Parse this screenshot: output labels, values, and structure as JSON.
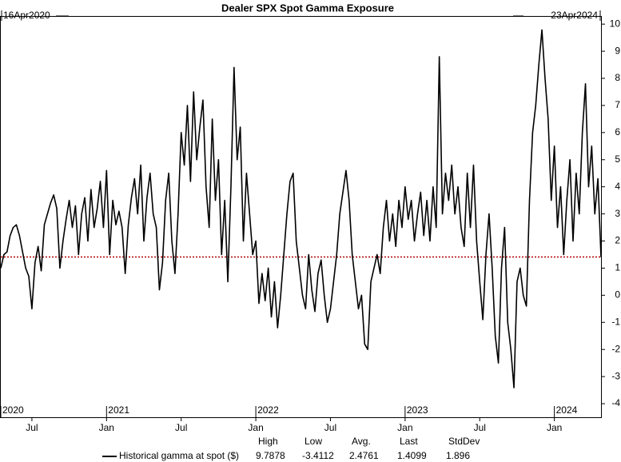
{
  "chart_data": {
    "type": "line",
    "title": "Dealer SPX Spot Gamma Exposure",
    "start_label": "16Apr2020",
    "end_label": "23Apr2024",
    "xlim": [
      3.5,
      51.75
    ],
    "xticks": [
      {
        "value": 6,
        "label": "Jul"
      },
      {
        "value": 12,
        "label": "Jan"
      },
      {
        "value": 18,
        "label": "Jul"
      },
      {
        "value": 24,
        "label": "Jan"
      },
      {
        "value": 30,
        "label": "Jul"
      },
      {
        "value": 36,
        "label": "Jan"
      },
      {
        "value": 42,
        "label": "Jul"
      },
      {
        "value": 48,
        "label": "Jan"
      }
    ],
    "year_labels": [
      {
        "value": 3.5,
        "label": "2020"
      },
      {
        "value": 12,
        "label": "2021"
      },
      {
        "value": 24,
        "label": "2022"
      },
      {
        "value": 36,
        "label": "2023"
      },
      {
        "value": 48,
        "label": "2024"
      }
    ],
    "ylim": [
      -4.5,
      10.3
    ],
    "yticks": [
      -4,
      -3,
      -2,
      -1,
      0,
      1,
      2,
      3,
      4,
      5,
      6,
      7,
      8,
      9,
      10
    ],
    "reference_line_color": "#b00000",
    "x": [
      3.5,
      3.75,
      4,
      4.25,
      4.5,
      4.75,
      5,
      5.25,
      5.5,
      5.75,
      6,
      6.25,
      6.5,
      6.75,
      7,
      7.25,
      7.5,
      7.75,
      8,
      8.25,
      8.5,
      8.75,
      9,
      9.25,
      9.5,
      9.75,
      10,
      10.25,
      10.5,
      10.75,
      11,
      11.25,
      11.5,
      11.75,
      12,
      12.25,
      12.5,
      12.75,
      13,
      13.25,
      13.5,
      13.75,
      14,
      14.25,
      14.5,
      14.75,
      15,
      15.25,
      15.5,
      15.75,
      16,
      16.25,
      16.5,
      16.75,
      17,
      17.25,
      17.5,
      17.75,
      18,
      18.25,
      18.5,
      18.75,
      19,
      19.25,
      19.5,
      19.75,
      20,
      20.25,
      20.5,
      20.75,
      21,
      21.25,
      21.5,
      21.75,
      22,
      22.25,
      22.5,
      22.75,
      23,
      23.25,
      23.5,
      23.75,
      24,
      24.25,
      24.5,
      24.75,
      25,
      25.25,
      25.5,
      25.75,
      26,
      26.25,
      26.5,
      26.75,
      27,
      27.25,
      27.5,
      27.75,
      28,
      28.25,
      28.5,
      28.75,
      29,
      29.25,
      29.5,
      29.75,
      30,
      30.25,
      30.5,
      30.75,
      31,
      31.25,
      31.5,
      31.75,
      32,
      32.25,
      32.5,
      32.75,
      33,
      33.25,
      33.5,
      33.75,
      34,
      34.25,
      34.5,
      34.75,
      35,
      35.25,
      35.5,
      35.75,
      36,
      36.25,
      36.5,
      36.75,
      37,
      37.25,
      37.5,
      37.75,
      38,
      38.25,
      38.5,
      38.75,
      39,
      39.25,
      39.5,
      39.75,
      40,
      40.25,
      40.5,
      40.75,
      41,
      41.25,
      41.5,
      41.75,
      42,
      42.25,
      42.5,
      42.75,
      43,
      43.25,
      43.5,
      43.75,
      44,
      44.25,
      44.5,
      44.75,
      45,
      45.25,
      45.5,
      45.75,
      46,
      46.25,
      46.5,
      46.75,
      47,
      47.25,
      47.5,
      47.75,
      48,
      48.25,
      48.5,
      48.75,
      49,
      49.25,
      49.5,
      49.75,
      50,
      50.25,
      50.5,
      50.75,
      51,
      51.25,
      51.5,
      51.75
    ],
    "series": [
      {
        "name": "Historical gamma at spot ($)",
        "color": "#000000",
        "values": [
          1.0,
          1.5,
          1.6,
          2.2,
          2.5,
          2.6,
          2.2,
          1.6,
          1.0,
          0.7,
          -0.5,
          1.2,
          1.8,
          0.9,
          2.6,
          3.0,
          3.4,
          3.7,
          3.2,
          1.0,
          2.0,
          2.8,
          3.5,
          2.5,
          3.3,
          1.5,
          3.0,
          3.6,
          2.0,
          3.9,
          2.5,
          3.2,
          4.2,
          2.5,
          4.6,
          1.5,
          3.5,
          2.6,
          3.1,
          2.5,
          0.8,
          2.6,
          3.6,
          4.3,
          3.0,
          4.8,
          2.0,
          3.6,
          4.5,
          3.0,
          2.5,
          0.2,
          1.2,
          3.5,
          4.5,
          2.0,
          0.8,
          3.0,
          6.0,
          4.8,
          7.0,
          4.2,
          7.5,
          5.0,
          6.2,
          7.2,
          4.0,
          2.5,
          6.5,
          3.5,
          5.0,
          1.5,
          3.5,
          0.5,
          4.0,
          8.4,
          5.0,
          6.2,
          2.0,
          4.5,
          3.0,
          1.5,
          2.0,
          -0.3,
          0.8,
          -0.2,
          1.0,
          -0.8,
          0.5,
          -1.2,
          0.0,
          1.5,
          3.0,
          4.2,
          4.5,
          2.0,
          1.0,
          0.0,
          -0.5,
          1.5,
          0.2,
          -0.6,
          0.8,
          1.3,
          0.0,
          -1.0,
          -0.5,
          0.5,
          1.5,
          3.0,
          3.8,
          4.6,
          3.5,
          1.5,
          0.5,
          -0.5,
          0.0,
          -1.8,
          -2.0,
          0.5,
          1.0,
          1.5,
          0.8,
          2.5,
          3.5,
          2.0,
          3.0,
          1.8,
          3.5,
          2.5,
          4.0,
          2.8,
          3.5,
          2.0,
          3.0,
          3.8,
          2.2,
          3.5,
          2.0,
          4.0,
          2.5,
          8.8,
          3.0,
          4.5,
          3.5,
          4.8,
          3.0,
          4.0,
          2.5,
          1.8,
          4.5,
          2.5,
          4.8,
          2.0,
          0.5,
          -0.9,
          1.5,
          3.0,
          1.0,
          -1.5,
          -2.5,
          1.0,
          2.5,
          -1.0,
          -2.0,
          -3.4112,
          0.5,
          1.0,
          0.0,
          -0.4,
          3.5,
          6.0,
          7.0,
          8.5,
          9.7878,
          8.0,
          6.5,
          3.5,
          5.5,
          2.5,
          4.0,
          1.5,
          3.5,
          5.0,
          2.0,
          4.5,
          3.0,
          6.0,
          7.8,
          4.0,
          5.5,
          3.0,
          4.3,
          1.4099
        ]
      }
    ],
    "stats": {
      "headers": [
        "High",
        "Low",
        "Avg.",
        "Last",
        "StdDev"
      ],
      "values": [
        9.7878,
        -3.4112,
        2.4761,
        1.4099,
        1.896
      ]
    }
  }
}
